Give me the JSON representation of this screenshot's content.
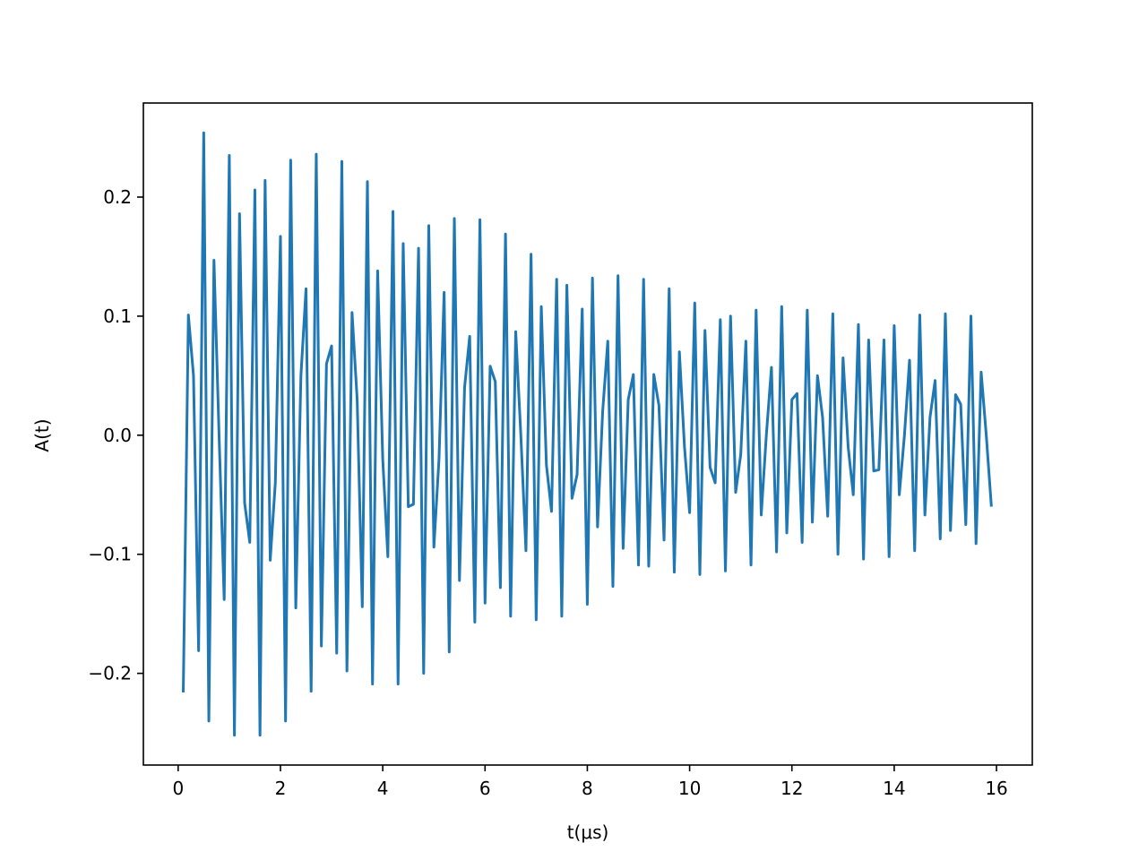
{
  "chart_data": {
    "type": "line",
    "x_label": "t(μs)",
    "y_label": "A(t)",
    "x": [
      0.1,
      0.2,
      0.3,
      0.4,
      0.5,
      0.6,
      0.7,
      0.8,
      0.9,
      1.0,
      1.1,
      1.2,
      1.3,
      1.4,
      1.5,
      1.6,
      1.7,
      1.8,
      1.9,
      2.0,
      2.1,
      2.2,
      2.3,
      2.4,
      2.5,
      2.6,
      2.7,
      2.8,
      2.9,
      3.0,
      3.1,
      3.2,
      3.3,
      3.4,
      3.5,
      3.6,
      3.7,
      3.8,
      3.9,
      4.0,
      4.1,
      4.2,
      4.3,
      4.4,
      4.5,
      4.6,
      4.7,
      4.8,
      4.9,
      5.0,
      5.1,
      5.2,
      5.3,
      5.4,
      5.5,
      5.6,
      5.7,
      5.8,
      5.9,
      6.0,
      6.1,
      6.2,
      6.3,
      6.4,
      6.5,
      6.6,
      6.7,
      6.8,
      6.9,
      7.0,
      7.1,
      7.2,
      7.3,
      7.4,
      7.5,
      7.6,
      7.7,
      7.8,
      7.9,
      8.0,
      8.1,
      8.2,
      8.3,
      8.4,
      8.5,
      8.6,
      8.7,
      8.8,
      8.9,
      9.0,
      9.1,
      9.2,
      9.3,
      9.4,
      9.5,
      9.6,
      9.7,
      9.8,
      9.9,
      10.0,
      10.1,
      10.2,
      10.3,
      10.4,
      10.5,
      10.6,
      10.7,
      10.8,
      10.9,
      11.0,
      11.1,
      11.2,
      11.3,
      11.4,
      11.5,
      11.6,
      11.7,
      11.8,
      11.9,
      12.0,
      12.1,
      12.2,
      12.3,
      12.4,
      12.5,
      12.6,
      12.7,
      12.8,
      12.9,
      13.0,
      13.1,
      13.2,
      13.3,
      13.4,
      13.5,
      13.6,
      13.7,
      13.8,
      13.9,
      14.0,
      14.1,
      14.2,
      14.3,
      14.4,
      14.5,
      14.6,
      14.7,
      14.8,
      14.9,
      15.0,
      15.1,
      15.2,
      15.3,
      15.4,
      15.5,
      15.6,
      15.7,
      15.8,
      15.9
    ],
    "series": [
      {
        "color": "#1f77b4",
        "values": [
          -0.216,
          0.101,
          0.05,
          -0.181,
          0.254,
          -0.24,
          0.147,
          0.0,
          -0.138,
          0.235,
          -0.252,
          0.186,
          -0.057,
          -0.09,
          0.206,
          -0.252,
          0.214,
          -0.105,
          -0.04,
          0.167,
          -0.24,
          0.231,
          -0.145,
          0.05,
          0.123,
          -0.215,
          0.236,
          -0.177,
          0.06,
          0.075,
          -0.183,
          0.23,
          -0.198,
          0.103,
          0.03,
          -0.144,
          0.213,
          -0.209,
          0.138,
          -0.02,
          -0.102,
          0.188,
          -0.209,
          0.161,
          -0.06,
          -0.058,
          0.157,
          -0.2,
          0.176,
          -0.094,
          -0.02,
          0.12,
          -0.182,
          0.182,
          -0.122,
          0.04,
          0.083,
          -0.157,
          0.181,
          -0.141,
          0.058,
          0.045,
          -0.128,
          0.169,
          -0.152,
          0.087,
          0.0,
          -0.097,
          0.152,
          -0.155,
          0.108,
          -0.025,
          -0.064,
          0.131,
          -0.152,
          0.126,
          -0.053,
          -0.033,
          0.106,
          -0.142,
          0.132,
          -0.077,
          0.02,
          0.079,
          -0.127,
          0.134,
          -0.095,
          0.03,
          0.051,
          -0.109,
          0.131,
          -0.11,
          0.051,
          0.025,
          -0.088,
          0.123,
          -0.115,
          0.07,
          -0.01,
          -0.065,
          0.111,
          -0.117,
          0.088,
          -0.027,
          -0.04,
          0.097,
          -0.114,
          0.1,
          -0.048,
          -0.016,
          0.079,
          -0.109,
          0.105,
          -0.067,
          0.0,
          0.057,
          -0.098,
          0.108,
          -0.082,
          0.03,
          0.035,
          -0.09,
          0.105,
          -0.073,
          0.05,
          0.015,
          -0.068,
          0.102,
          -0.1,
          0.065,
          -0.01,
          -0.05,
          0.093,
          -0.104,
          0.08,
          -0.03,
          -0.029,
          0.08,
          -0.102,
          0.092,
          -0.05,
          0.0,
          0.063,
          -0.097,
          0.101,
          -0.067,
          0.015,
          0.046,
          -0.087,
          0.102,
          -0.08,
          0.034,
          0.026,
          -0.075,
          0.1,
          -0.091,
          0.053,
          0.0,
          -0.06
        ]
      }
    ],
    "xlim": [
      -0.68,
      16.7
    ],
    "ylim": [
      -0.277,
      0.279
    ],
    "xticks": [
      0,
      2,
      4,
      6,
      8,
      10,
      12,
      14,
      16
    ],
    "yticks": [
      {
        "value": -0.2,
        "label": "−0.2"
      },
      {
        "value": -0.1,
        "label": "−0.1"
      },
      {
        "value": 0,
        "label": "0.0"
      },
      0.1,
      0.2
    ]
  }
}
